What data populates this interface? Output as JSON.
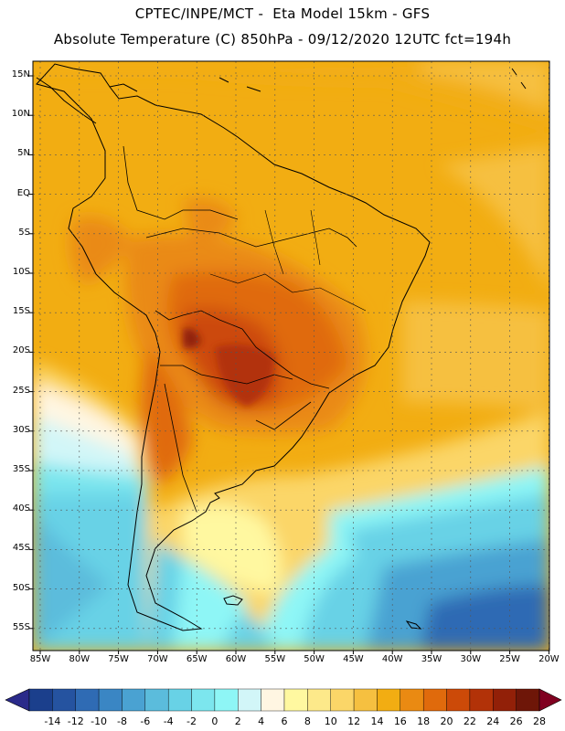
{
  "header": {
    "line1": "CPTEC/INPE/MCT -  Eta Model 15km - GFS",
    "line2": "Absolute Temperature (C) 850hPa - 09/12/2020 12UTC fct=194h"
  },
  "map": {
    "lat_labels": [
      "15N",
      "10N",
      "5N",
      "EQ",
      "5S",
      "10S",
      "15S",
      "20S",
      "25S",
      "30S",
      "35S",
      "40S",
      "45S",
      "50S",
      "55S"
    ],
    "lon_labels": [
      "85W",
      "80W",
      "75W",
      "70W",
      "65W",
      "60W",
      "55W",
      "50W",
      "45W",
      "40W",
      "35W",
      "30W",
      "25W",
      "20W"
    ]
  },
  "colorbar": {
    "labels": [
      "-14",
      "-12",
      "-10",
      "-8",
      "-6",
      "-4",
      "-2",
      "0",
      "2",
      "4",
      "6",
      "8",
      "10",
      "12",
      "14",
      "16",
      "18",
      "20",
      "22",
      "24",
      "26",
      "28"
    ],
    "colors": [
      "#1b3f8c",
      "#2553a0",
      "#2f6bb4",
      "#3a86c4",
      "#4aa2d2",
      "#5bbcdc",
      "#68d2e6",
      "#7ce6ee",
      "#8ef6f6",
      "#d2f6f8",
      "#fff6e2",
      "#fff8a0",
      "#fde98a",
      "#fbd668",
      "#f6c040",
      "#f2ad12",
      "#ea8a12",
      "#e06a0c",
      "#cc4a08",
      "#b23208",
      "#922008",
      "#6e1608"
    ],
    "under_color": "#2a2a8a",
    "over_color": "#800020"
  }
}
